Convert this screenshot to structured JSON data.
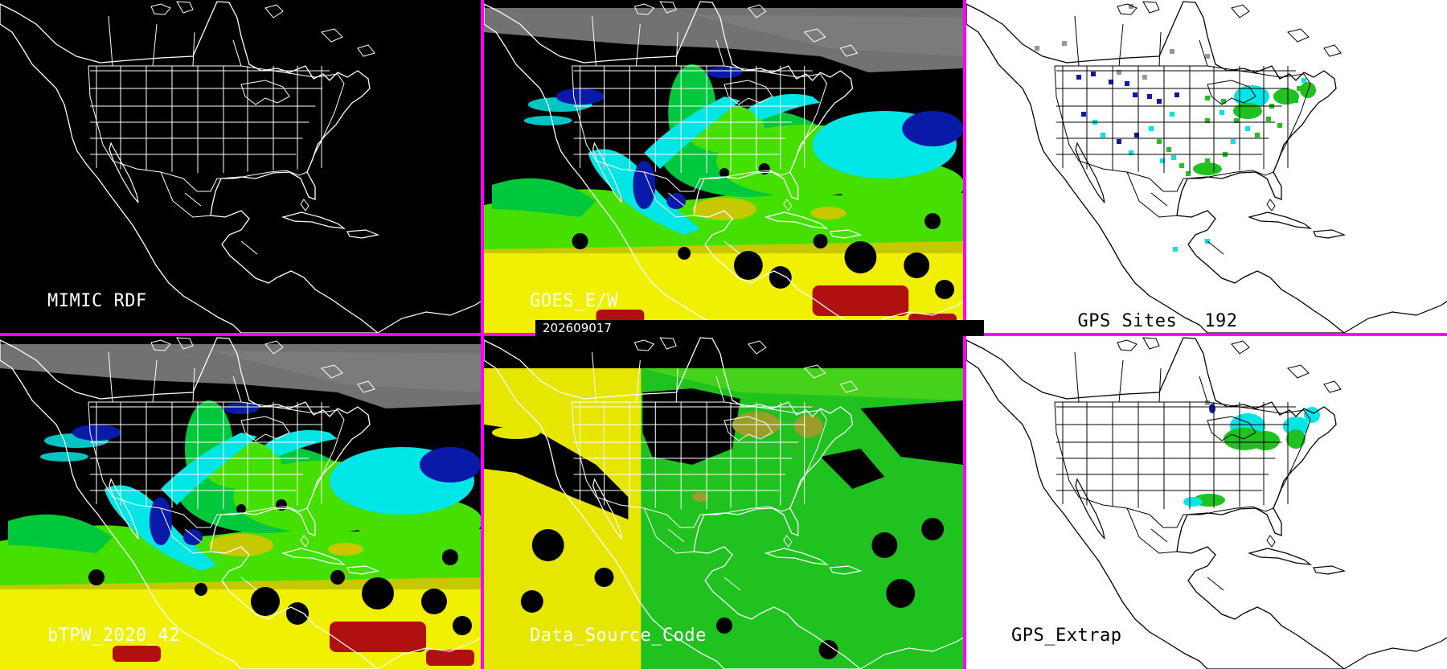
{
  "colors": {
    "separator": "#ff00ff",
    "map_lines_dark": "#ffffff",
    "map_lines_light": "#000000",
    "tpw_scale": [
      "#7f7f7f",
      "#cfcfcf",
      "#0a1aa8",
      "#2a5fd8",
      "#00e5e5",
      "#00c83c",
      "#45e000",
      "#c8c800",
      "#f0f000",
      "#b01010"
    ],
    "source_codes": [
      "#e6e600",
      "#1fc21f",
      "#46d21a",
      "#9c9c2a",
      "#000000"
    ],
    "gps_sites": [
      "#00e5e5",
      "#1fc21f",
      "#0a1aa8",
      "#969696"
    ]
  },
  "timestamp": "202609017",
  "panels": [
    {
      "id": "mimic-rdf",
      "label": "MIMIC RDF",
      "background": "dark",
      "content": "outline"
    },
    {
      "id": "goes-ew",
      "label": "GOES_E/W",
      "background": "dark",
      "content": "tpw-field"
    },
    {
      "id": "gps-sites",
      "label": "GPS Sites",
      "count": "192",
      "background": "light",
      "content": "site-markers"
    },
    {
      "id": "btpw",
      "label": "bTPW_2020_42",
      "background": "dark",
      "content": "tpw-field"
    },
    {
      "id": "data-source-code",
      "label": "Data_Source_Code",
      "background": "dark",
      "content": "source-code-field"
    },
    {
      "id": "gps-extrap",
      "label": "GPS_Extrap",
      "background": "light",
      "content": "extrapolation-patches"
    }
  ]
}
